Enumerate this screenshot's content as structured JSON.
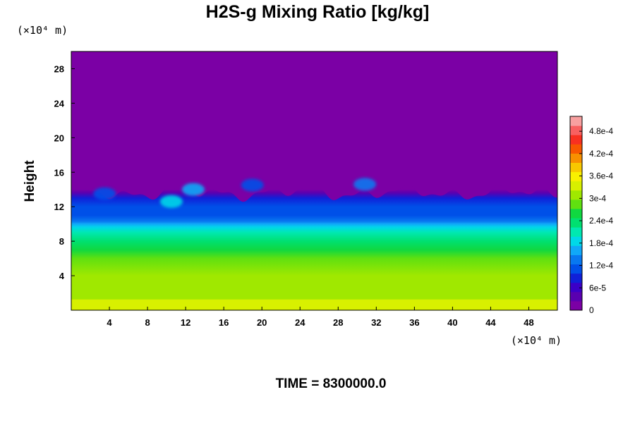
{
  "chart_data": {
    "type": "heatmap",
    "title": "H2S-g Mixing Ratio [kg/kg]",
    "ylabel": "Height",
    "x_unit": "(×10⁴ m)",
    "y_unit": "(×10⁴ m)",
    "footer": "TIME = 8300000.0",
    "xlim": [
      0,
      51
    ],
    "ylim": [
      0,
      30
    ],
    "x_ticks": [
      "4",
      "8",
      "12",
      "16",
      "20",
      "24",
      "28",
      "32",
      "36",
      "40",
      "44",
      "48"
    ],
    "y_ticks": [
      "4",
      "8",
      "12",
      "16",
      "20",
      "24",
      "28"
    ],
    "colorbar": {
      "range": [
        0,
        0.00052
      ],
      "tick_labels": [
        "0",
        "6e-5",
        "1.2e-4",
        "1.8e-4",
        "2.4e-4",
        "3e-4",
        "3.6e-4",
        "4.2e-4",
        "4.8e-4"
      ],
      "colors": [
        "#7b00a5",
        "#5a00b0",
        "#3b00c8",
        "#1020d8",
        "#0050e8",
        "#0878f0",
        "#10a8f8",
        "#00d8e8",
        "#00e8b0",
        "#00e070",
        "#10d840",
        "#60e010",
        "#a0e800",
        "#d8f000",
        "#f8f000",
        "#f8c800",
        "#f89000",
        "#f85800",
        "#f83020",
        "#f86060",
        "#f8a0a0"
      ]
    },
    "vertical_profile": [
      {
        "height": 0,
        "value": 0.00034
      },
      {
        "height": 1.2,
        "value": 0.000345
      },
      {
        "height": 1.3,
        "value": 0.000318
      },
      {
        "height": 4,
        "value": 0.000305
      },
      {
        "height": 6,
        "value": 0.00029
      },
      {
        "height": 7,
        "value": 0.00027
      },
      {
        "height": 8,
        "value": 0.000245
      },
      {
        "height": 9,
        "value": 0.000215
      },
      {
        "height": 9.6,
        "value": 0.000185
      },
      {
        "height": 10,
        "value": 0.000155
      },
      {
        "height": 10.3,
        "value": 0.00013
      },
      {
        "height": 11,
        "value": 0.00011
      },
      {
        "height": 12,
        "value": 0.0001
      },
      {
        "height": 13,
        "value": 8e-05
      },
      {
        "height": 13.6,
        "value": 4e-05
      },
      {
        "height": 14,
        "value": 0.0
      }
    ],
    "plumes": [
      {
        "x": 10.5,
        "y": 12.6,
        "value": 0.00018
      },
      {
        "x": 12.8,
        "y": 14.0,
        "value": 0.00015
      },
      {
        "x": 30.8,
        "y": 14.6,
        "value": 0.00014
      },
      {
        "x": 19.0,
        "y": 14.5,
        "value": 0.0001
      },
      {
        "x": 3.5,
        "y": 13.5,
        "value": 0.0001
      }
    ]
  }
}
